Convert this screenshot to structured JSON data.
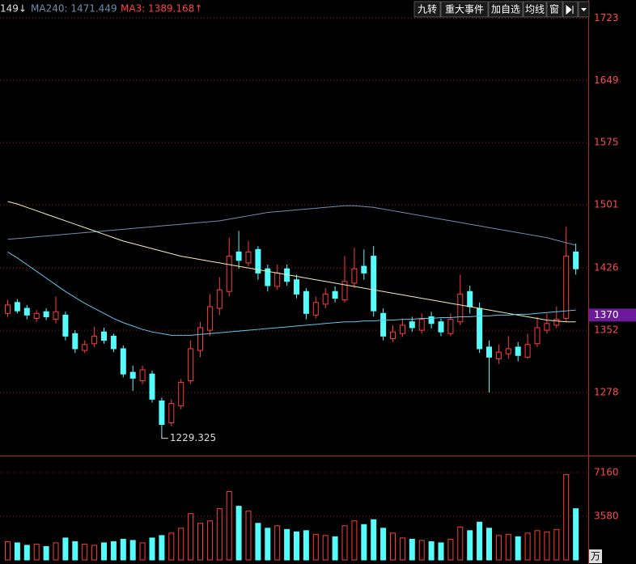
{
  "toolbar": {
    "items": [
      "149↓",
      "MA240: 1471.449",
      "MA3: 1389.168↑"
    ],
    "buttons": [
      "九转",
      "重大事件",
      "加自选",
      "均线",
      "窗"
    ]
  },
  "chart_data": {
    "type": "candlestick",
    "ylim": [
      1204,
      1731
    ],
    "yticks": [
      1278,
      1352,
      1426,
      1501,
      1575,
      1649,
      1723
    ],
    "grid": true,
    "up_color": "#ff3b3b",
    "down_color": "#54fcfc",
    "open": [
      1372,
      1385,
      1378,
      1366,
      1374,
      1365,
      1370,
      1348,
      1328,
      1336,
      1350,
      1345,
      1330,
      1302,
      1292,
      1300,
      1268,
      1242,
      1262,
      1292,
      1328,
      1352,
      1378,
      1398,
      1445,
      1432,
      1448,
      1425,
      1404,
      1425,
      1412,
      1398,
      1370,
      1383,
      1398,
      1388,
      1408,
      1428,
      1440,
      1372,
      1342,
      1348,
      1362,
      1352,
      1368,
      1362,
      1348,
      1362,
      1398,
      1378,
      1332,
      1318,
      1324,
      1332,
      1320,
      1336,
      1352,
      1358,
      1366,
      1445
    ],
    "high": [
      1388,
      1389,
      1382,
      1376,
      1378,
      1392,
      1374,
      1352,
      1340,
      1356,
      1355,
      1348,
      1334,
      1310,
      1310,
      1304,
      1272,
      1270,
      1294,
      1340,
      1362,
      1395,
      1415,
      1462,
      1470,
      1458,
      1452,
      1430,
      1430,
      1430,
      1418,
      1402,
      1392,
      1402,
      1404,
      1440,
      1450,
      1448,
      1452,
      1378,
      1358,
      1366,
      1368,
      1372,
      1374,
      1366,
      1372,
      1418,
      1405,
      1385,
      1340,
      1335,
      1345,
      1338,
      1348,
      1368,
      1372,
      1380,
      1475,
      1455
    ],
    "low": [
      1368,
      1372,
      1365,
      1362,
      1364,
      1360,
      1340,
      1325,
      1325,
      1332,
      1336,
      1326,
      1296,
      1280,
      1288,
      1266,
      1229.325,
      1238,
      1258,
      1288,
      1320,
      1345,
      1370,
      1392,
      1425,
      1428,
      1412,
      1398,
      1400,
      1405,
      1390,
      1365,
      1366,
      1378,
      1385,
      1385,
      1402,
      1412,
      1368,
      1340,
      1338,
      1344,
      1350,
      1348,
      1354,
      1345,
      1345,
      1358,
      1372,
      1325,
      1278,
      1312,
      1318,
      1315,
      1318,
      1332,
      1348,
      1354,
      1362,
      1418
    ],
    "close": [
      1382,
      1375,
      1370,
      1372,
      1368,
      1374,
      1345,
      1330,
      1335,
      1345,
      1340,
      1330,
      1300,
      1295,
      1305,
      1270,
      1240,
      1265,
      1290,
      1330,
      1355,
      1380,
      1400,
      1440,
      1435,
      1445,
      1420,
      1405,
      1420,
      1410,
      1395,
      1372,
      1385,
      1395,
      1390,
      1410,
      1425,
      1420,
      1375,
      1345,
      1350,
      1358,
      1355,
      1365,
      1360,
      1350,
      1365,
      1395,
      1380,
      1330,
      1320,
      1326,
      1330,
      1322,
      1335,
      1355,
      1360,
      1365,
      1440,
      1425
    ],
    "lines": [
      {
        "color": "#6f8fae",
        "values": [
          1460,
          1461,
          1462,
          1463,
          1464,
          1465,
          1466,
          1467,
          1468,
          1469,
          1470,
          1471,
          1472,
          1473,
          1474,
          1475,
          1476,
          1477,
          1478,
          1479,
          1480,
          1481,
          1482,
          1484,
          1486,
          1488,
          1490,
          1492,
          1493,
          1494,
          1495,
          1496,
          1497,
          1498,
          1499,
          1500,
          1500,
          1499,
          1498,
          1496,
          1494,
          1492,
          1490,
          1488,
          1486,
          1484,
          1482,
          1480,
          1478,
          1476,
          1474,
          1472,
          1470,
          1468,
          1466,
          1464,
          1462,
          1459,
          1456,
          1453
        ]
      },
      {
        "color": "#f4f0b0",
        "values": [
          1505,
          1502,
          1498,
          1494,
          1490,
          1486,
          1482,
          1478,
          1474,
          1470,
          1466,
          1462,
          1458,
          1455,
          1452,
          1449,
          1446,
          1443,
          1440,
          1438,
          1436,
          1434,
          1432,
          1430,
          1428,
          1426,
          1424,
          1422,
          1420,
          1418,
          1416,
          1414,
          1412,
          1410,
          1408,
          1406,
          1404,
          1402,
          1400,
          1398,
          1396,
          1394,
          1392,
          1390,
          1388,
          1386,
          1384,
          1382,
          1380,
          1378,
          1376,
          1374,
          1372,
          1370,
          1368,
          1366,
          1364,
          1363,
          1362,
          1362
        ]
      },
      {
        "color": "#5fc8f0",
        "values": [
          1445,
          1438,
          1430,
          1422,
          1414,
          1406,
          1398,
          1391,
          1384,
          1378,
          1372,
          1366,
          1361,
          1357,
          1353,
          1350,
          1348,
          1346,
          1346,
          1346,
          1347,
          1348,
          1349,
          1350,
          1351,
          1352,
          1353,
          1354,
          1355,
          1356,
          1357,
          1358,
          1359,
          1360,
          1361,
          1362,
          1362,
          1363,
          1363,
          1364,
          1364,
          1365,
          1365,
          1366,
          1366,
          1367,
          1367,
          1368,
          1368,
          1369,
          1369,
          1370,
          1370,
          1371,
          1371,
          1372,
          1373,
          1374,
          1375,
          1376
        ]
      }
    ],
    "last_price_marker": 1370,
    "volume": {
      "values": [
        1500,
        1400,
        1200,
        1300,
        1100,
        1400,
        1800,
        1500,
        1300,
        1200,
        1400,
        1500,
        1700,
        1600,
        1400,
        1800,
        2000,
        2200,
        2600,
        3800,
        3000,
        3200,
        4200,
        5600,
        4400,
        4000,
        3000,
        2600,
        2800,
        2500,
        2300,
        2400,
        2100,
        2000,
        1900,
        2800,
        3200,
        2900,
        3300,
        2600,
        2200,
        1800,
        1700,
        1600,
        1500,
        1400,
        1700,
        2700,
        2400,
        3100,
        2600,
        2000,
        2100,
        1900,
        2200,
        2400,
        2300,
        2500,
        7000,
        4200
      ],
      "ylim": [
        0,
        8420
      ],
      "yticks": [
        3580,
        7160
      ],
      "unit": "万"
    }
  }
}
